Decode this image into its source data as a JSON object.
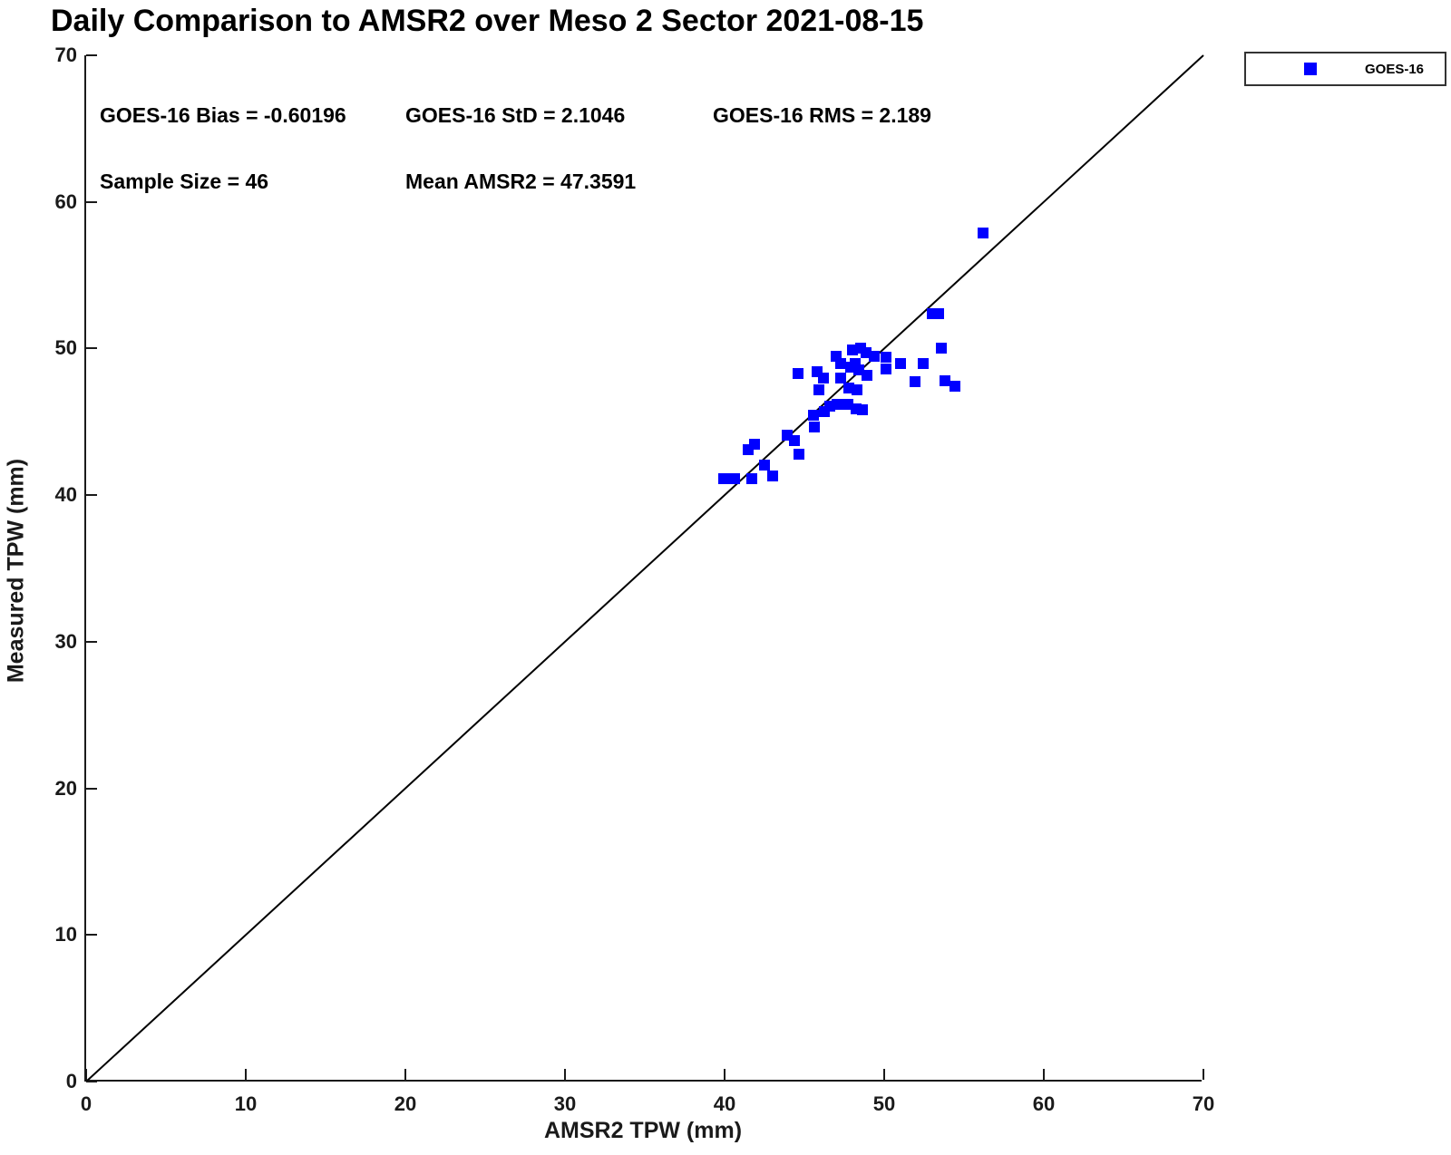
{
  "figure": {
    "title": "Daily Comparison to AMSR2 over Meso 2 Sector 2021-08-15",
    "stats": {
      "bias": "GOES-16 Bias = -0.60196",
      "std": "GOES-16 StD = 2.1046",
      "rms": "GOES-16 RMS = 2.189",
      "sample_size": "Sample Size = 46",
      "mean_amsr2": "Mean AMSR2 = 47.3591"
    },
    "legend": {
      "items": [
        {
          "label": "GOES-16",
          "marker": "filled-square",
          "color": "#0000ff"
        }
      ],
      "position": "top-right"
    },
    "colors": {
      "marker": "#0000ff",
      "identity_line": "#000000",
      "axis": "#1a1a1a",
      "text": "#000000",
      "background": "#ffffff"
    }
  },
  "chart_data": {
    "type": "scatter",
    "title": "Daily Comparison to AMSR2 over Meso 2 Sector 2021-08-15",
    "xlabel": "AMSR2 TPW (mm)",
    "ylabel": "Measured TPW (mm)",
    "xlim": [
      0,
      70
    ],
    "ylim": [
      0,
      70
    ],
    "x_ticks": [
      0,
      10,
      20,
      30,
      40,
      50,
      60,
      70
    ],
    "y_ticks": [
      0,
      10,
      20,
      30,
      40,
      50,
      60,
      70
    ],
    "grid": false,
    "legend_position": "top-right",
    "reference_line": {
      "type": "identity",
      "from": [
        0,
        0
      ],
      "to": [
        70,
        70
      ],
      "color": "#000000",
      "width": 2
    },
    "annotations": {
      "goes16_bias": -0.60196,
      "goes16_std": 2.1046,
      "goes16_rms": 2.189,
      "sample_size": 46,
      "mean_amsr2": 47.3591
    },
    "series": [
      {
        "name": "GOES-16",
        "marker": "square",
        "color": "#0000ff",
        "points": [
          [
            39.95,
            41.15
          ],
          [
            40.6,
            41.15
          ],
          [
            41.7,
            41.15
          ],
          [
            43.0,
            41.3
          ],
          [
            42.5,
            42.05
          ],
          [
            41.5,
            43.1
          ],
          [
            41.85,
            43.5
          ],
          [
            43.9,
            44.1
          ],
          [
            44.35,
            43.7
          ],
          [
            44.65,
            42.8
          ],
          [
            45.55,
            45.45
          ],
          [
            45.6,
            44.65
          ],
          [
            46.25,
            45.7
          ],
          [
            46.6,
            46.05
          ],
          [
            47.05,
            46.2
          ],
          [
            47.7,
            46.2
          ],
          [
            48.25,
            45.9
          ],
          [
            48.65,
            45.85
          ],
          [
            44.6,
            48.3
          ],
          [
            45.8,
            48.4
          ],
          [
            46.2,
            48.0
          ],
          [
            45.9,
            47.2
          ],
          [
            47.0,
            49.5
          ],
          [
            47.3,
            49.0
          ],
          [
            47.3,
            48.0
          ],
          [
            47.8,
            47.3
          ],
          [
            48.3,
            47.2
          ],
          [
            47.9,
            48.75
          ],
          [
            48.2,
            49.0
          ],
          [
            48.4,
            48.55
          ],
          [
            48.5,
            50.0
          ],
          [
            48.85,
            49.7
          ],
          [
            49.35,
            49.5
          ],
          [
            48.9,
            48.2
          ],
          [
            50.1,
            49.4
          ],
          [
            50.1,
            48.6
          ],
          [
            51.05,
            48.95
          ],
          [
            52.45,
            48.95
          ],
          [
            51.95,
            47.75
          ],
          [
            53.6,
            50.05
          ],
          [
            53.0,
            52.4
          ],
          [
            53.4,
            52.4
          ],
          [
            53.8,
            47.8
          ],
          [
            54.45,
            47.4
          ],
          [
            56.2,
            57.9
          ],
          [
            48.0,
            49.9
          ]
        ]
      }
    ]
  }
}
